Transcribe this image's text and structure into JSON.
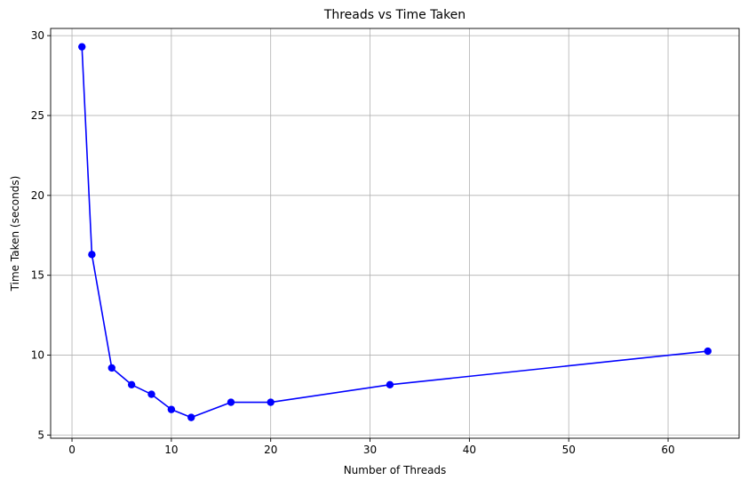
{
  "chart_data": {
    "type": "line",
    "title": "Threads vs Time Taken",
    "xlabel": "Number of Threads",
    "ylabel": "Time Taken (seconds)",
    "xlim": [
      -2.15,
      67.15
    ],
    "ylim": [
      4.8,
      30.45
    ],
    "xticks": [
      0,
      10,
      20,
      30,
      40,
      50,
      60
    ],
    "yticks": [
      5,
      10,
      15,
      20,
      25,
      30
    ],
    "grid": true,
    "series": [
      {
        "marker": "circle",
        "color": "#0000ff",
        "x": [
          1,
          2,
          4,
          6,
          8,
          10,
          12,
          16,
          20,
          32,
          64
        ],
        "y": [
          29.3,
          16.3,
          9.2,
          8.15,
          7.55,
          6.6,
          6.1,
          7.05,
          7.05,
          8.15,
          10.25
        ]
      }
    ]
  }
}
